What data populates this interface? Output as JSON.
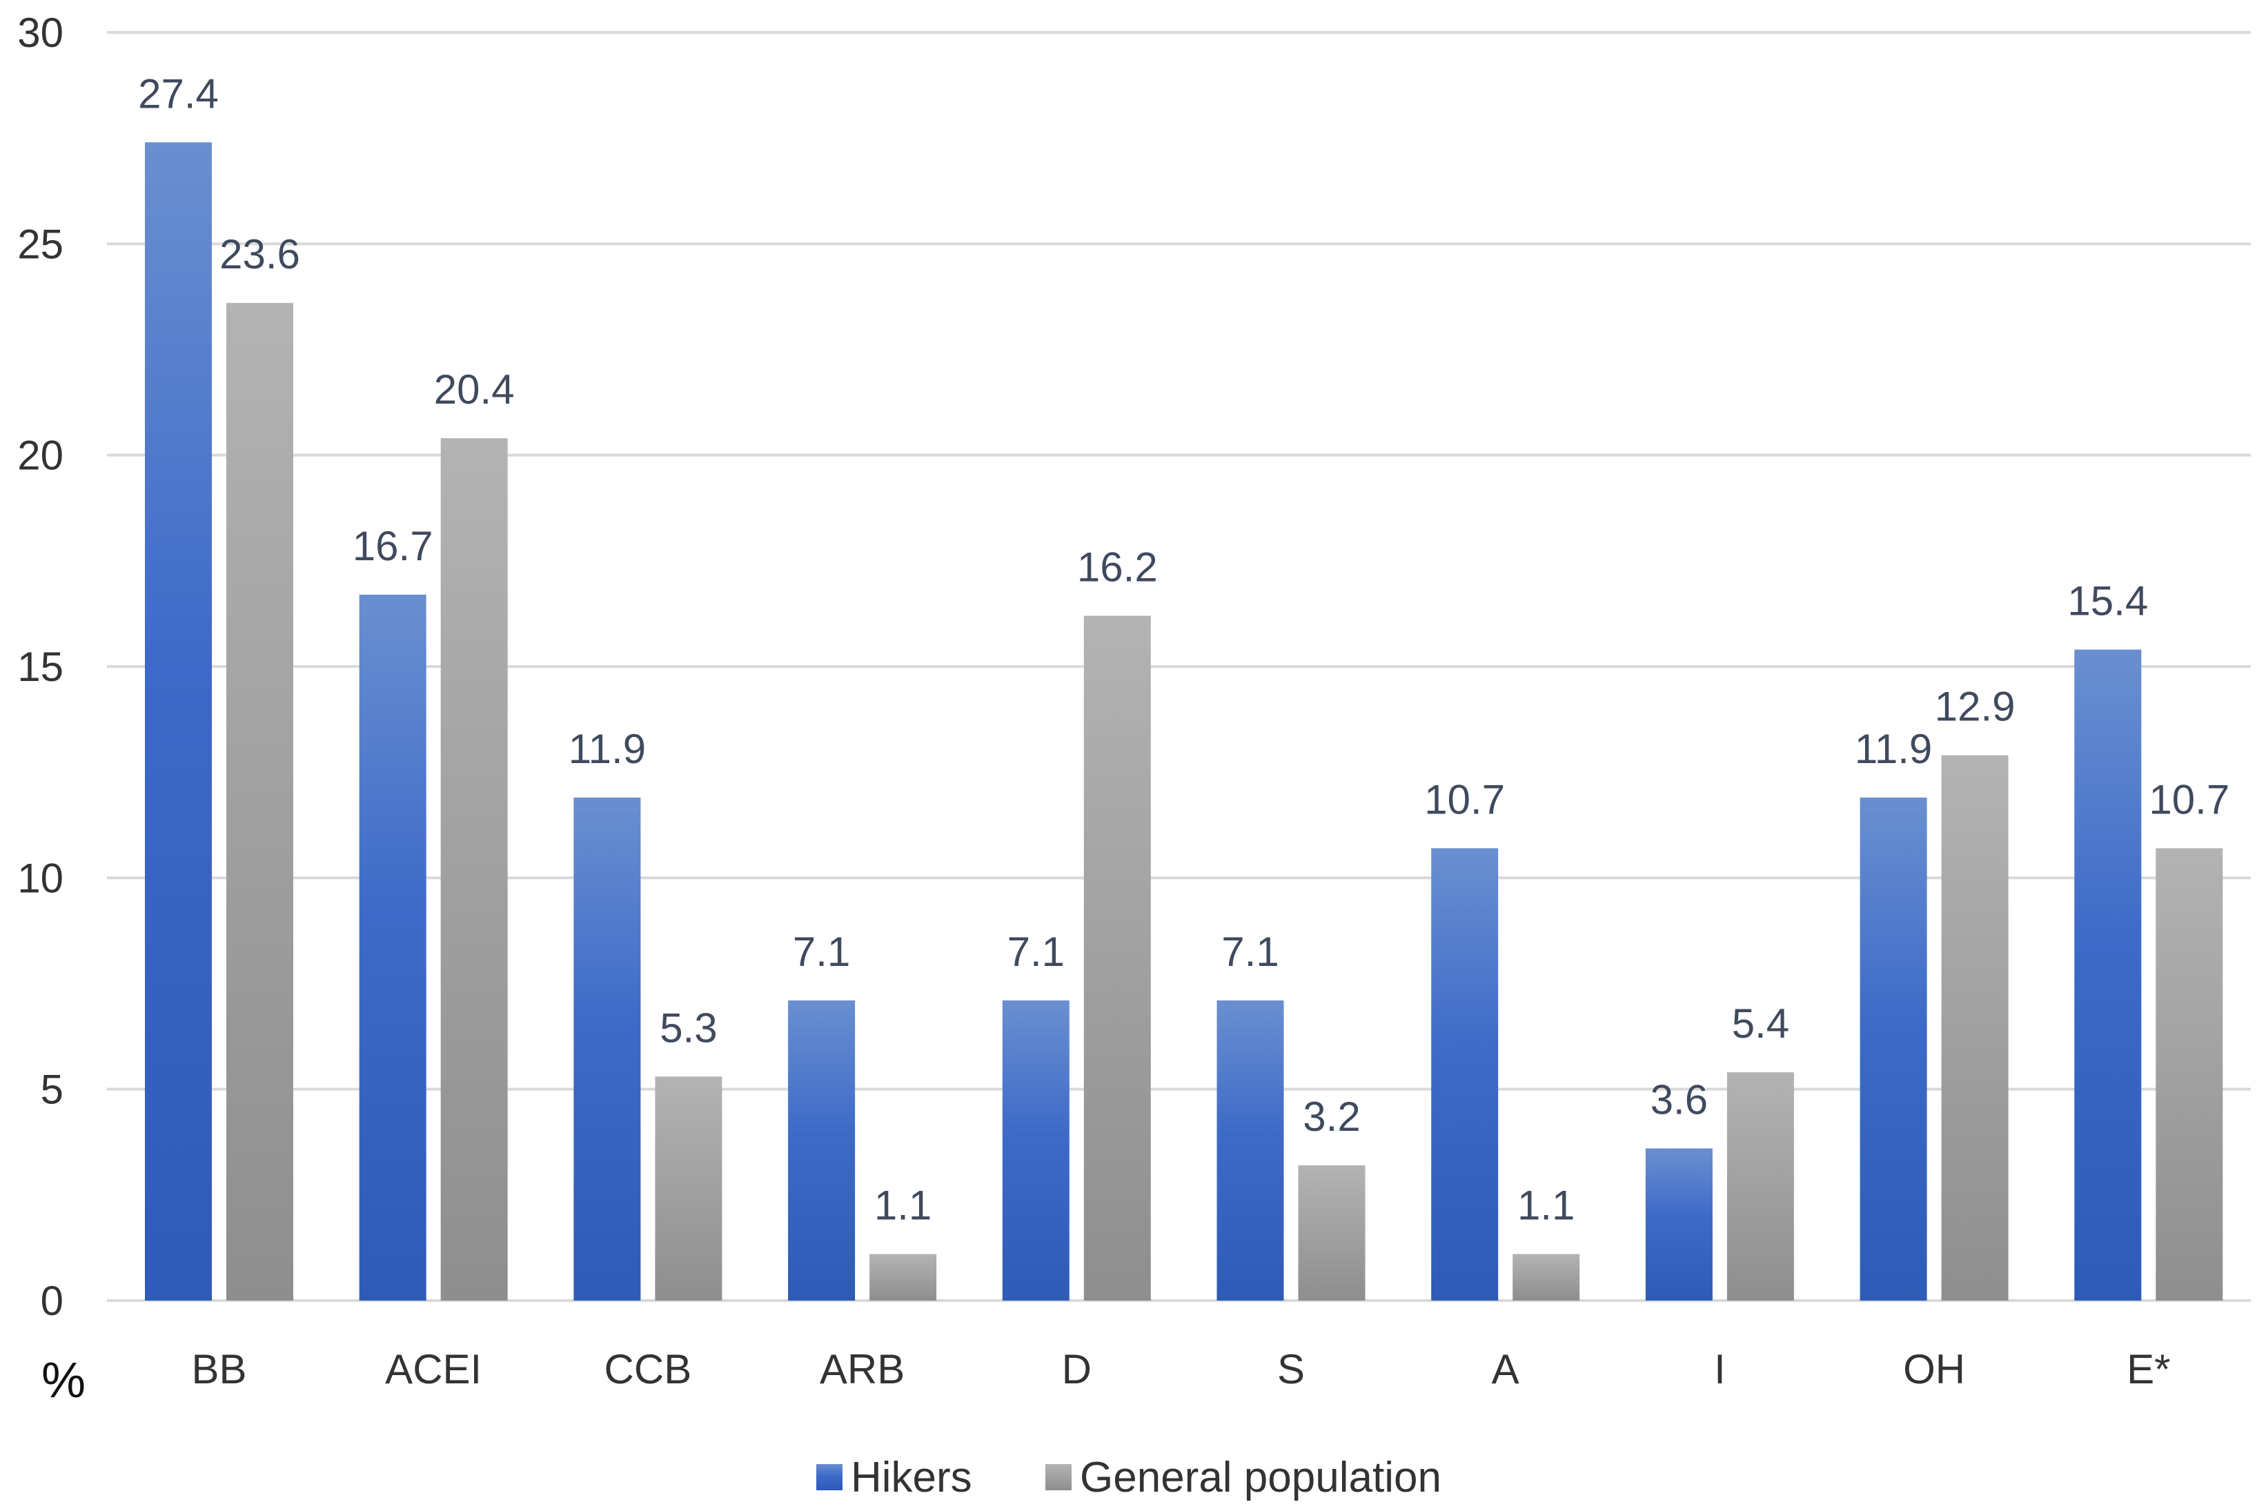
{
  "chart_data": {
    "type": "bar",
    "categories": [
      "BB",
      "ACEI",
      "CCB",
      "ARB",
      "D",
      "S",
      "A",
      "I",
      "OH",
      "E*"
    ],
    "series": [
      {
        "name": "Hikers",
        "values": [
          27.4,
          16.7,
          11.9,
          7.1,
          7.1,
          7.1,
          10.7,
          3.6,
          11.9,
          15.4
        ],
        "color": "#4472c4"
      },
      {
        "name": "General population",
        "values": [
          23.6,
          20.4,
          5.3,
          1.1,
          16.2,
          3.2,
          1.1,
          5.4,
          12.9,
          10.7
        ],
        "color": "#a5a5a5"
      }
    ],
    "title": "",
    "xlabel": "",
    "ylabel": "%",
    "ylim": [
      0,
      30
    ],
    "yticks": [
      0,
      5,
      10,
      15,
      20,
      25,
      30
    ],
    "grid": true,
    "legend": "bottom-center"
  }
}
